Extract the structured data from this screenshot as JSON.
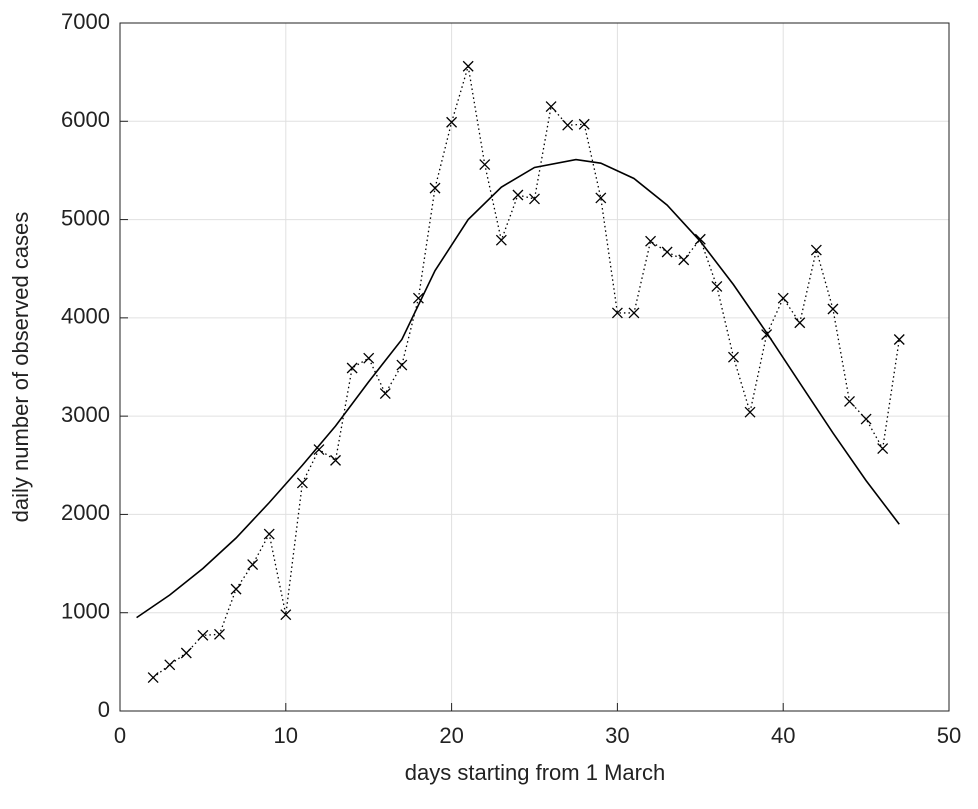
{
  "chart_data": {
    "type": "line",
    "xlabel": "days starting from 1 March",
    "ylabel": "daily number of observed cases",
    "xlim": [
      0,
      50
    ],
    "xticks": [
      0,
      10,
      20,
      30,
      40,
      50
    ],
    "ylim": [
      0,
      7000
    ],
    "yticks": [
      0,
      1000,
      2000,
      3000,
      4000,
      5000,
      6000,
      7000
    ],
    "grid": true,
    "series": [
      {
        "color": "#000000",
        "linestyle": "dotted",
        "marker": "x",
        "x": [
          2,
          3,
          4,
          5,
          6,
          7,
          8,
          9,
          10,
          11,
          12,
          13,
          14,
          15,
          16,
          17,
          18,
          19,
          20,
          21,
          22,
          23,
          24,
          25,
          26,
          27,
          28,
          29,
          30,
          31,
          32,
          33,
          34,
          35,
          36,
          37,
          38,
          39,
          40,
          41,
          42,
          43,
          44,
          45,
          46,
          47
        ],
        "values": [
          340,
          470,
          590,
          770,
          780,
          1240,
          1490,
          1800,
          980,
          2320,
          2660,
          2550,
          3490,
          3590,
          3230,
          3520,
          4200,
          5320,
          5990,
          6560,
          5560,
          4790,
          5250,
          5210,
          6150,
          5960,
          5970,
          5220,
          4050,
          4050,
          4780,
          4670,
          4590,
          4800,
          4320,
          3600,
          3040,
          3830,
          4200,
          3950,
          4690,
          4090,
          3150,
          2970,
          2670,
          3780
        ]
      },
      {
        "color": "#000000",
        "linestyle": "solid",
        "x": [
          1,
          3,
          5,
          7,
          9,
          11,
          13,
          15,
          17,
          19,
          21,
          23,
          25,
          27.5,
          29,
          31,
          33,
          35,
          37,
          39,
          41,
          43,
          45,
          47
        ],
        "values": [
          950,
          1180,
          1450,
          1760,
          2120,
          2500,
          2900,
          3350,
          3780,
          4480,
          5000,
          5330,
          5530,
          5610,
          5574,
          5418,
          5147,
          4779,
          4338,
          3849,
          3338,
          2829,
          2344,
          1900
        ]
      }
    ]
  }
}
